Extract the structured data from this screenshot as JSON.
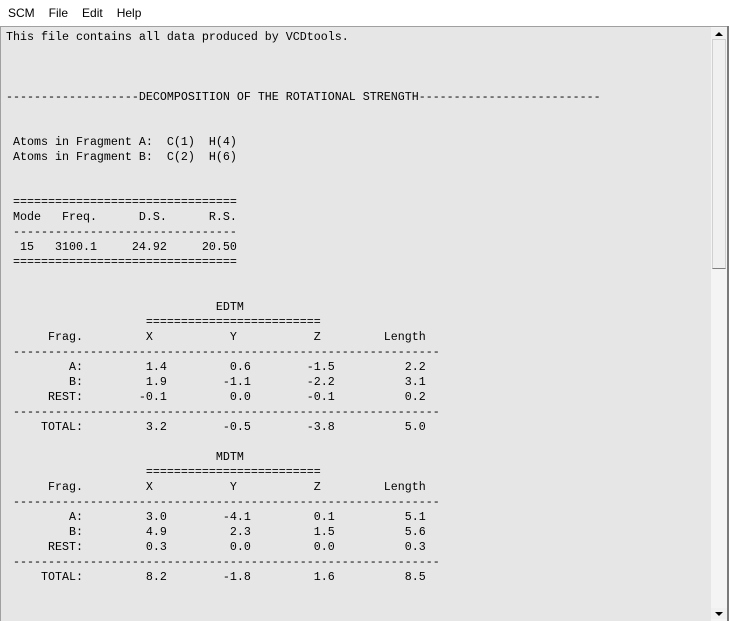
{
  "menu": [
    "SCM",
    "File",
    "Edit",
    "Help"
  ],
  "document": {
    "intro": "This file contains all data produced by VCDtools.",
    "section_title": "DECOMPOSITION OF THE ROTATIONAL STRENGTH",
    "fragments": [
      {
        "label": "Atoms in Fragment A:",
        "atoms": [
          "C(1)",
          "H(4)"
        ]
      },
      {
        "label": "Atoms in Fragment B:",
        "atoms": [
          "C(2)",
          "H(6)"
        ]
      }
    ],
    "mode_table": {
      "headers": [
        "Mode",
        "Freq.",
        "D.S.",
        "R.S."
      ],
      "row": [
        "15",
        "3100.1",
        "24.92",
        "20.50"
      ]
    },
    "tables": [
      {
        "title": "EDTM",
        "headers": [
          "Frag.",
          "X",
          "Y",
          "Z",
          "Length"
        ],
        "rows": [
          [
            "A:",
            "1.4",
            "0.6",
            "-1.5",
            "2.2"
          ],
          [
            "B:",
            "1.9",
            "-1.1",
            "-2.2",
            "3.1"
          ],
          [
            "REST:",
            "-0.1",
            "0.0",
            "-0.1",
            "0.2"
          ]
        ],
        "total": [
          "TOTAL:",
          "3.2",
          "-0.5",
          "-3.8",
          "5.0"
        ]
      },
      {
        "title": "MDTM",
        "headers": [
          "Frag.",
          "X",
          "Y",
          "Z",
          "Length"
        ],
        "rows": [
          [
            "A:",
            "3.0",
            "-4.1",
            "0.1",
            "5.1"
          ],
          [
            "B:",
            "4.9",
            "2.3",
            "1.5",
            "5.6"
          ],
          [
            "REST:",
            "0.3",
            "0.0",
            "0.0",
            "0.3"
          ]
        ],
        "total": [
          "TOTAL:",
          "8.2",
          "-1.8",
          "1.6",
          "8.5"
        ]
      }
    ]
  }
}
